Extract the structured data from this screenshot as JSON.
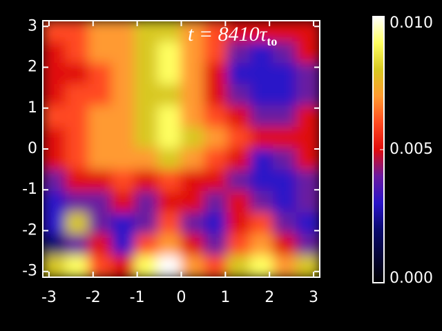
{
  "chart_data": {
    "type": "heatmap",
    "annotation": "t = 8410τ",
    "annotation_subscript": "to",
    "xlim": [
      -3.14,
      3.14
    ],
    "ylim": [
      -3.14,
      3.14
    ],
    "xticks": [
      -3,
      -2,
      -1,
      0,
      1,
      2,
      3
    ],
    "yticks": [
      -3,
      -2,
      -1,
      0,
      1,
      2,
      3
    ],
    "z": [
      [
        0.006,
        0.006,
        0.007,
        0.007,
        0.008,
        0.008,
        0.007,
        0.006,
        0.005,
        0.005,
        0.005,
        0.005
      ],
      [
        0.005,
        0.006,
        0.007,
        0.007,
        0.008,
        0.009,
        0.007,
        0.006,
        0.004,
        0.003,
        0.004,
        0.005
      ],
      [
        0.005,
        0.005,
        0.006,
        0.007,
        0.008,
        0.009,
        0.007,
        0.005,
        0.003,
        0.003,
        0.003,
        0.004
      ],
      [
        0.005,
        0.006,
        0.006,
        0.007,
        0.008,
        0.008,
        0.007,
        0.005,
        0.004,
        0.003,
        0.003,
        0.004
      ],
      [
        0.006,
        0.006,
        0.007,
        0.007,
        0.008,
        0.009,
        0.007,
        0.006,
        0.005,
        0.004,
        0.004,
        0.005
      ],
      [
        0.005,
        0.006,
        0.007,
        0.007,
        0.008,
        0.009,
        0.008,
        0.007,
        0.006,
        0.005,
        0.005,
        0.005
      ],
      [
        0.005,
        0.006,
        0.007,
        0.007,
        0.007,
        0.008,
        0.007,
        0.006,
        0.005,
        0.003,
        0.004,
        0.005
      ],
      [
        0.004,
        0.005,
        0.005,
        0.006,
        0.005,
        0.006,
        0.005,
        0.005,
        0.004,
        0.003,
        0.003,
        0.004
      ],
      [
        0.003,
        0.004,
        0.004,
        0.005,
        0.004,
        0.005,
        0.005,
        0.004,
        0.005,
        0.004,
        0.003,
        0.004
      ],
      [
        0.003,
        0.008,
        0.004,
        0.003,
        0.004,
        0.006,
        0.004,
        0.003,
        0.005,
        0.006,
        0.004,
        0.003
      ],
      [
        0.002,
        0.004,
        0.005,
        0.003,
        0.006,
        0.007,
        0.005,
        0.004,
        0.006,
        0.007,
        0.005,
        0.004
      ],
      [
        0.008,
        0.009,
        0.006,
        0.005,
        0.009,
        0.01,
        0.007,
        0.006,
        0.008,
        0.009,
        0.007,
        0.008
      ]
    ],
    "colorscale": [
      [
        0,
        "#000000"
      ],
      [
        0.002,
        "#0a0a6e"
      ],
      [
        0.003,
        "#2a14c8"
      ],
      [
        0.004,
        "#6a1aa0"
      ],
      [
        0.005,
        "#e00c0c"
      ],
      [
        0.006,
        "#ff4a20"
      ],
      [
        0.007,
        "#ff9a30"
      ],
      [
        0.008,
        "#d8c820"
      ],
      [
        0.009,
        "#ffff60"
      ],
      [
        0.01,
        "#ffffff"
      ]
    ],
    "colorbar_lim": [
      0,
      0.01
    ],
    "colorbar_ticks": [
      {
        "value": 0,
        "label": "0.000"
      },
      {
        "value": 0.005,
        "label": "0.005"
      },
      {
        "value": 0.01,
        "label": "0.010"
      }
    ]
  }
}
